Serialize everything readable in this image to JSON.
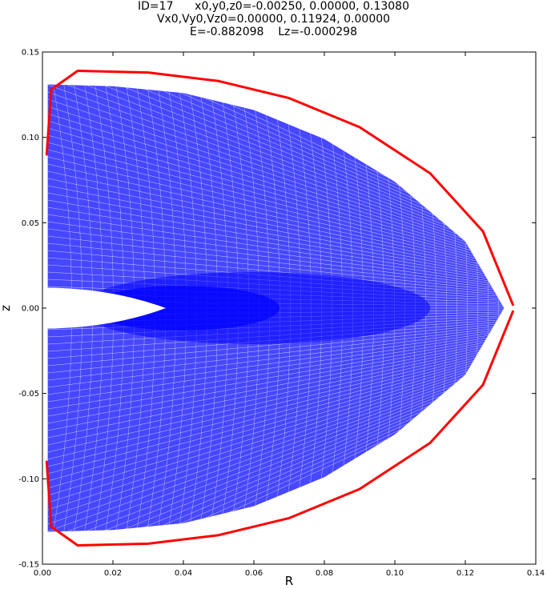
{
  "title": {
    "line1": "ID=17      x0,y0,z0=-0.00250, 0.00000, 0.13080",
    "line2": "Vx0,Vy0,Vz0=0.00000, 0.11924, 0.00000",
    "line3": "E=-0.882098    Lz=-0.000298"
  },
  "chart_data": {
    "type": "line",
    "xlabel": "R",
    "ylabel": "z",
    "xlim": [
      0.0,
      0.14
    ],
    "ylim": [
      -0.15,
      0.15
    ],
    "xticks": [
      "0.00",
      "0.02",
      "0.04",
      "0.06",
      "0.08",
      "0.10",
      "0.12",
      "0.14"
    ],
    "yticks": [
      "0.15",
      "0.10",
      "0.05",
      "0.00",
      "-0.05",
      "-0.10",
      "-0.15"
    ],
    "grid": false,
    "colors": {
      "orbit": "#0000ff",
      "boundary": "#ff0000"
    },
    "orbit_envelope": {
      "outer_boundary": [
        [
          0.0015,
          0.131
        ],
        [
          0.02,
          0.13
        ],
        [
          0.04,
          0.126
        ],
        [
          0.06,
          0.116
        ],
        [
          0.08,
          0.099
        ],
        [
          0.1,
          0.074
        ],
        [
          0.12,
          0.039
        ],
        [
          0.131,
          0.0
        ]
      ],
      "inner_hole_r_max": 0.035,
      "inner_hole_z_half": 0.012
    },
    "series": [
      {
        "values": [
          [
            0.0012,
            0.09
          ],
          [
            0.0025,
            0.128
          ],
          [
            0.01,
            0.139
          ],
          [
            0.03,
            0.138
          ],
          [
            0.05,
            0.133
          ],
          [
            0.07,
            0.123
          ],
          [
            0.09,
            0.106
          ],
          [
            0.11,
            0.079
          ],
          [
            0.125,
            0.045
          ],
          [
            0.1335,
            0.002
          ]
        ]
      },
      {
        "values": [
          [
            0.0012,
            -0.09
          ],
          [
            0.0025,
            -0.128
          ],
          [
            0.01,
            -0.139
          ],
          [
            0.03,
            -0.138
          ],
          [
            0.05,
            -0.133
          ],
          [
            0.07,
            -0.123
          ],
          [
            0.09,
            -0.106
          ],
          [
            0.11,
            -0.079
          ],
          [
            0.125,
            -0.045
          ],
          [
            0.1335,
            -0.002
          ]
        ]
      }
    ]
  }
}
